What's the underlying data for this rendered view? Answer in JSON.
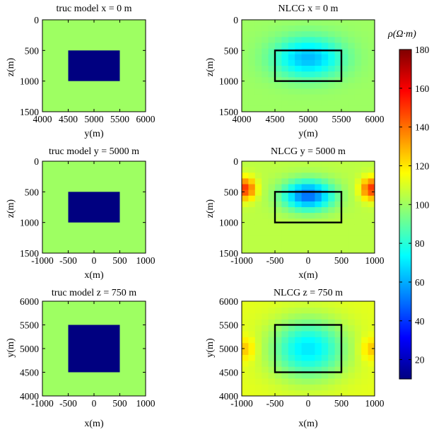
{
  "colorbar": {
    "label": "ρ(Ω·m)",
    "range": [
      10,
      180
    ],
    "ticks": [
      20,
      40,
      60,
      80,
      100,
      120,
      140,
      160,
      180
    ]
  },
  "colors": {
    "background_100": "#a5ff5a",
    "anomaly_10": "#000f8a",
    "outline": "#000000"
  },
  "chart_data": [
    {
      "type": "heatmap",
      "title": "truc model x = 0 m",
      "xlabel": "y(m)",
      "ylabel": "z(m)",
      "xlim": [
        4000,
        6000
      ],
      "ylim": [
        0,
        1500
      ],
      "y_inverted": true,
      "xticks": [
        4000,
        4500,
        5000,
        5500,
        6000
      ],
      "yticks": [
        0,
        500,
        1000,
        1500
      ],
      "background_value": 100,
      "anomaly": {
        "x": [
          4500,
          5500
        ],
        "y": [
          500,
          1000
        ],
        "value": 10
      },
      "outline_box": null
    },
    {
      "type": "heatmap",
      "title": "NLCG x = 0 m",
      "xlabel": "y(m)",
      "ylabel": "z(m)",
      "xlim": [
        4000,
        6000
      ],
      "ylim": [
        0,
        1500
      ],
      "y_inverted": true,
      "xticks": [
        4000,
        4500,
        5000,
        5500,
        6000
      ],
      "yticks": [
        0,
        500,
        1000,
        1500
      ],
      "field": {
        "background": 100,
        "min_value": 62,
        "center": [
          5000,
          620
        ],
        "spread": [
          520,
          330
        ],
        "side_bumps": []
      },
      "outline_box": {
        "x": [
          4500,
          5500
        ],
        "y": [
          500,
          1000
        ]
      }
    },
    {
      "type": "heatmap",
      "title": "truc model y = 5000 m",
      "xlabel": "x(m)",
      "ylabel": "z(m)",
      "xlim": [
        -1000,
        1000
      ],
      "ylim": [
        0,
        1500
      ],
      "y_inverted": true,
      "xticks": [
        -1000,
        -500,
        0,
        500,
        1000
      ],
      "yticks": [
        0,
        500,
        1000,
        1500
      ],
      "background_value": 100,
      "anomaly": {
        "x": [
          -500,
          500
        ],
        "y": [
          500,
          1000
        ],
        "value": 10
      },
      "outline_box": null
    },
    {
      "type": "heatmap",
      "title": "NLCG y = 5000 m",
      "xlabel": "x(m)",
      "ylabel": "z(m)",
      "xlim": [
        -1000,
        1000
      ],
      "ylim": [
        0,
        1500
      ],
      "y_inverted": true,
      "xticks": [
        -1000,
        -500,
        0,
        500,
        1000
      ],
      "yticks": [
        0,
        500,
        1000,
        1500
      ],
      "field": {
        "background": 105,
        "min_value": 48,
        "center": [
          0,
          560
        ],
        "spread": [
          380,
          240
        ],
        "side_bumps": [
          {
            "x": -950,
            "y": 450,
            "value": 150
          },
          {
            "x": 950,
            "y": 450,
            "value": 150
          }
        ]
      },
      "outline_box": {
        "x": [
          -500,
          500
        ],
        "y": [
          500,
          1000
        ]
      }
    },
    {
      "type": "heatmap",
      "title": "truc model z = 750 m",
      "xlabel": "x(m)",
      "ylabel": "y(m)",
      "xlim": [
        -1000,
        1000
      ],
      "ylim": [
        4000,
        6000
      ],
      "y_inverted": false,
      "xticks": [
        -1000,
        -500,
        0,
        500,
        1000
      ],
      "yticks": [
        4000,
        4500,
        5000,
        5500,
        6000
      ],
      "background_value": 100,
      "anomaly": {
        "x": [
          -500,
          500
        ],
        "y": [
          4500,
          5500
        ],
        "value": 10
      },
      "outline_box": null
    },
    {
      "type": "heatmap",
      "title": "NLCG z = 750 m",
      "xlabel": "x(m)",
      "ylabel": "y(m)",
      "xlim": [
        -1000,
        1000
      ],
      "ylim": [
        4000,
        6000
      ],
      "y_inverted": false,
      "xticks": [
        -1000,
        -500,
        0,
        500,
        1000
      ],
      "yticks": [
        4000,
        4500,
        5000,
        5500,
        6000
      ],
      "field": {
        "background": 112,
        "min_value": 70,
        "center": [
          0,
          5000
        ],
        "spread": [
          560,
          620
        ],
        "side_bumps": [
          {
            "x": -950,
            "y": 5000,
            "value": 128
          },
          {
            "x": 950,
            "y": 5000,
            "value": 128
          }
        ]
      },
      "outline_box": {
        "x": [
          -500,
          500
        ],
        "y": [
          4500,
          5500
        ]
      }
    }
  ]
}
